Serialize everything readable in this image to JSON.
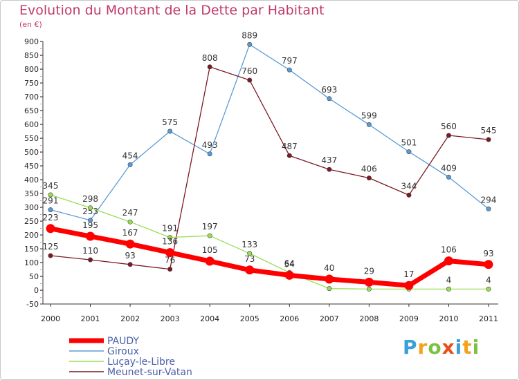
{
  "title": "Evolution du Montant de la Dette par Habitant",
  "subtitle": "(en €)",
  "logo_text": "Proxiti",
  "chart_data": {
    "type": "line",
    "title": "Evolution du Montant de la Dette par Habitant",
    "subtitle": "(en €)",
    "x": [
      2000,
      2001,
      2002,
      2003,
      2004,
      2005,
      2006,
      2007,
      2008,
      2009,
      2010,
      2011
    ],
    "ylim": [
      -50,
      900
    ],
    "yticks": [
      -50,
      0,
      50,
      100,
      150,
      200,
      250,
      300,
      350,
      400,
      450,
      500,
      550,
      600,
      650,
      700,
      750,
      800,
      850,
      900
    ],
    "grid": false,
    "legend_position": "bottom-left",
    "series": [
      {
        "name": "PAUDY",
        "color": "#ff0000",
        "values": [
          223,
          195,
          167,
          136,
          105,
          73,
          54,
          40,
          29,
          17,
          106,
          93
        ],
        "labels": [
          "223",
          "195",
          "167",
          "136",
          "105",
          "73",
          "54",
          "40",
          "29",
          "17",
          "106",
          "93"
        ]
      },
      {
        "name": "Giroux",
        "color": "#5b9bd5",
        "values": [
          291,
          253,
          454,
          575,
          493,
          889,
          797,
          693,
          599,
          501,
          409,
          294
        ],
        "labels": [
          "291",
          "253",
          "454",
          "575",
          "493",
          "889",
          "797",
          "693",
          "599",
          "501",
          "409",
          "294"
        ]
      },
      {
        "name": "Luçay-le-Libre",
        "color": "#99dd55",
        "values": [
          345,
          298,
          247,
          191,
          197,
          133,
          64,
          6,
          4,
          4,
          4,
          4
        ],
        "labels": [
          "345",
          "298",
          "247",
          "191",
          "197",
          "133",
          "64",
          "",
          "",
          "",
          "4",
          "4"
        ]
      },
      {
        "name": "Meunet-sur-Vatan",
        "color": "#7a1a22",
        "values": [
          125,
          110,
          93,
          76,
          808,
          760,
          487,
          437,
          406,
          344,
          560,
          545
        ],
        "labels": [
          "125",
          "110",
          "93",
          "76",
          "808",
          "760",
          "487",
          "437",
          "406",
          "344",
          "560",
          "545"
        ]
      }
    ]
  }
}
